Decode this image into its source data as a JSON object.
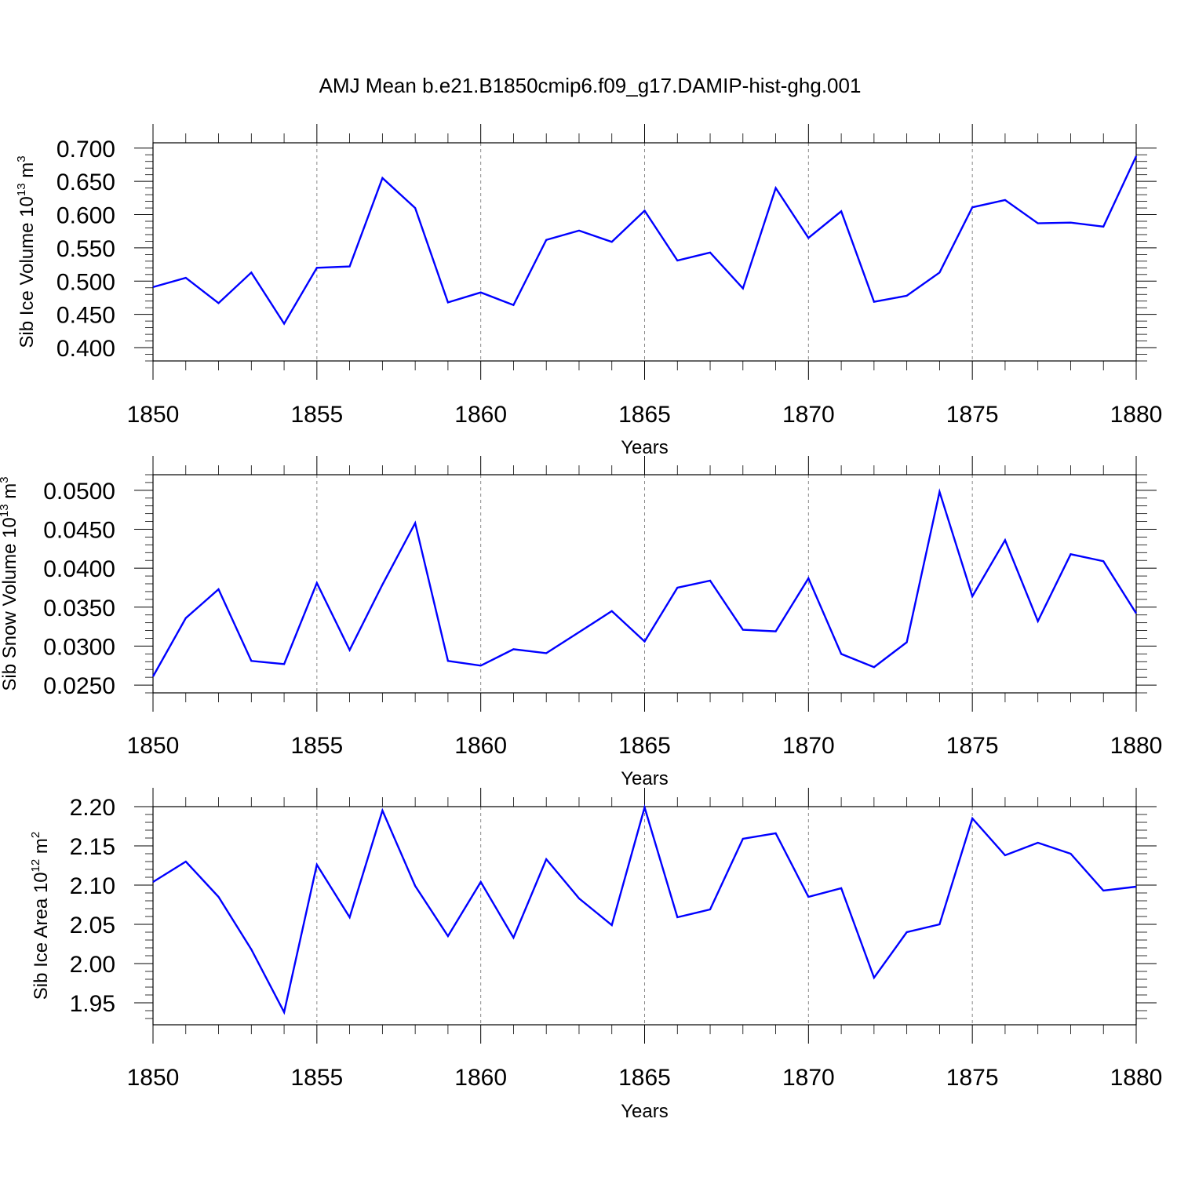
{
  "title": "AMJ Mean b.e21.B1850cmip6.f09_g17.DAMIP-hist-ghg.001",
  "colors": {
    "series": "#0000ff",
    "axes": "#000000",
    "grid": "#888888"
  },
  "chart_data": [
    {
      "type": "line",
      "ylabel_main": "Sib Ice Volume 10",
      "ylabel_exp": "13",
      "ylabel_unit": " m",
      "ylabel_unit_exp": "3",
      "xlabel": "Years",
      "xlim": [
        1850,
        1880
      ],
      "ylim": [
        0.38,
        0.708
      ],
      "xticks": [
        1850,
        1855,
        1860,
        1865,
        1870,
        1875,
        1880
      ],
      "xtick_labels": [
        "1850",
        "1855",
        "1860",
        "1865",
        "1870",
        "1875",
        "1880"
      ],
      "yticks": [
        0.4,
        0.45,
        0.5,
        0.55,
        0.6,
        0.65,
        0.7
      ],
      "ytick_labels": [
        "0.400",
        "0.450",
        "0.500",
        "0.550",
        "0.600",
        "0.650",
        "0.700"
      ],
      "yminor_step": 0.01,
      "x": [
        1850,
        1851,
        1852,
        1853,
        1854,
        1855,
        1856,
        1857,
        1858,
        1859,
        1860,
        1861,
        1862,
        1863,
        1864,
        1865,
        1866,
        1867,
        1868,
        1869,
        1870,
        1871,
        1872,
        1873,
        1874,
        1875,
        1876,
        1877,
        1878,
        1879,
        1880
      ],
      "values": [
        0.491,
        0.505,
        0.467,
        0.513,
        0.436,
        0.52,
        0.522,
        0.655,
        0.61,
        0.468,
        0.483,
        0.464,
        0.562,
        0.576,
        0.559,
        0.606,
        0.531,
        0.543,
        0.489,
        0.64,
        0.565,
        0.605,
        0.469,
        0.478,
        0.513,
        0.611,
        0.622,
        0.587,
        0.588,
        0.582,
        0.688
      ]
    },
    {
      "type": "line",
      "ylabel_main": "Sib Snow Volume 10",
      "ylabel_exp": "13",
      "ylabel_unit": " m",
      "ylabel_unit_exp": "3",
      "xlabel": "Years",
      "xlim": [
        1850,
        1880
      ],
      "ylim": [
        0.024,
        0.052
      ],
      "xticks": [
        1850,
        1855,
        1860,
        1865,
        1870,
        1875,
        1880
      ],
      "xtick_labels": [
        "1850",
        "1855",
        "1860",
        "1865",
        "1870",
        "1875",
        "1880"
      ],
      "yticks": [
        0.025,
        0.03,
        0.035,
        0.04,
        0.045,
        0.05
      ],
      "ytick_labels": [
        "0.0250",
        "0.0300",
        "0.0350",
        "0.0400",
        "0.0450",
        "0.0500"
      ],
      "yminor_step": 0.001,
      "x": [
        1850,
        1851,
        1852,
        1853,
        1854,
        1855,
        1856,
        1857,
        1858,
        1859,
        1860,
        1861,
        1862,
        1863,
        1864,
        1865,
        1866,
        1867,
        1868,
        1869,
        1870,
        1871,
        1872,
        1873,
        1874,
        1875,
        1876,
        1877,
        1878,
        1879,
        1880
      ],
      "values": [
        0.0261,
        0.0336,
        0.0373,
        0.0281,
        0.0277,
        0.0381,
        0.0295,
        0.0379,
        0.0458,
        0.0281,
        0.0275,
        0.0296,
        0.0291,
        0.0318,
        0.0345,
        0.0306,
        0.0375,
        0.0384,
        0.0321,
        0.0319,
        0.0387,
        0.029,
        0.0273,
        0.0305,
        0.0498,
        0.0364,
        0.0436,
        0.0332,
        0.0418,
        0.0409,
        0.0342
      ]
    },
    {
      "type": "line",
      "ylabel_main": "Sib Ice Area 10",
      "ylabel_exp": "12",
      "ylabel_unit": " m",
      "ylabel_unit_exp": "2",
      "xlabel": "Years",
      "xlim": [
        1850,
        1880
      ],
      "ylim": [
        1.922,
        2.2
      ],
      "xticks": [
        1850,
        1855,
        1860,
        1865,
        1870,
        1875,
        1880
      ],
      "xtick_labels": [
        "1850",
        "1855",
        "1860",
        "1865",
        "1870",
        "1875",
        "1880"
      ],
      "yticks": [
        1.95,
        2.0,
        2.05,
        2.1,
        2.15,
        2.2
      ],
      "ytick_labels": [
        "1.95",
        "2.00",
        "2.05",
        "2.10",
        "2.15",
        "2.20"
      ],
      "yminor_step": 0.01,
      "x": [
        1850,
        1851,
        1852,
        1853,
        1854,
        1855,
        1856,
        1857,
        1858,
        1859,
        1860,
        1861,
        1862,
        1863,
        1864,
        1865,
        1866,
        1867,
        1868,
        1869,
        1870,
        1871,
        1872,
        1873,
        1874,
        1875,
        1876,
        1877,
        1878,
        1879,
        1880
      ],
      "values": [
        2.104,
        2.13,
        2.085,
        2.018,
        1.938,
        2.126,
        2.059,
        2.195,
        2.099,
        2.035,
        2.104,
        2.033,
        2.133,
        2.083,
        2.049,
        2.199,
        2.059,
        2.069,
        2.159,
        2.166,
        2.085,
        2.096,
        1.982,
        2.04,
        2.05,
        2.185,
        2.138,
        2.154,
        2.14,
        2.093,
        2.098
      ]
    }
  ]
}
